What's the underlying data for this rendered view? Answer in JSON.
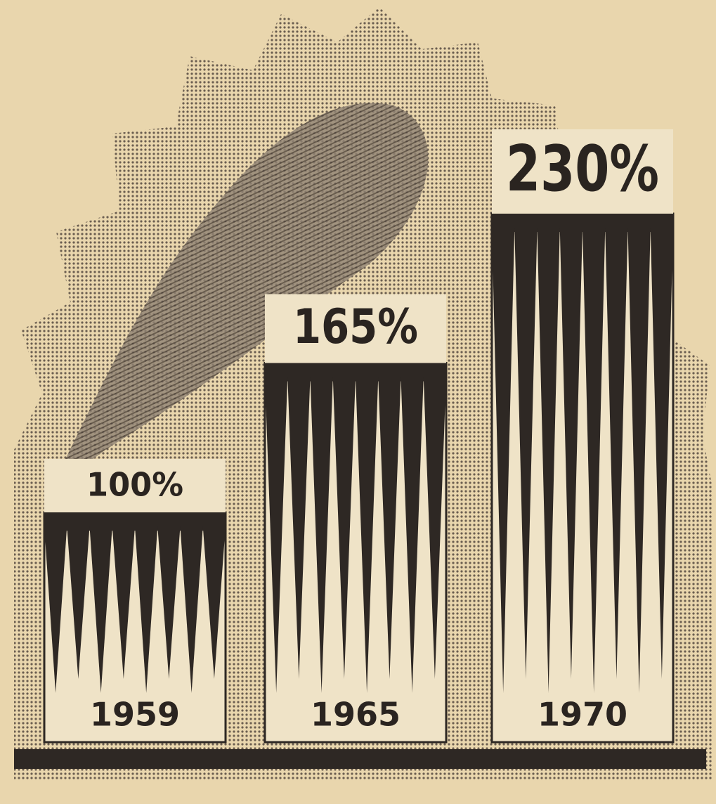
{
  "chart_data": {
    "type": "bar",
    "categories": [
      "1959",
      "1965",
      "1970"
    ],
    "values": [
      100,
      165,
      230
    ],
    "value_labels": [
      "100%",
      "165%",
      "230%"
    ],
    "color": "#2e2824"
  }
}
